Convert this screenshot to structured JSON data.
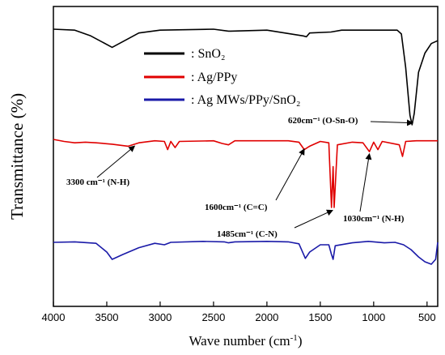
{
  "chart_data": {
    "type": "line",
    "xlabel": "Wave number (cm",
    "xlabel_sup": "-1",
    "xlabel_close": ")",
    "ylabel": "Transmittance (%)",
    "xlim": [
      4000,
      400
    ],
    "x_reversed": true,
    "y_ticks_shown": false,
    "grid": false,
    "legend_position": "top-center",
    "xticks": [
      4000,
      3500,
      3000,
      2500,
      2000,
      1500,
      1000,
      500
    ],
    "xtick_labels": [
      "4000",
      "3500",
      "3000",
      "2500",
      "2000",
      "1500",
      "1000",
      "500"
    ],
    "series": [
      {
        "name": ": SnO₂",
        "color": "#000000",
        "offset": 2.0,
        "points": [
          [
            4000,
            1.0
          ],
          [
            3800,
            0.99
          ],
          [
            3650,
            0.93
          ],
          [
            3450,
            0.81
          ],
          [
            3300,
            0.9
          ],
          [
            3200,
            0.96
          ],
          [
            3000,
            0.99
          ],
          [
            2500,
            1.0
          ],
          [
            2360,
            0.98
          ],
          [
            2340,
            0.98
          ],
          [
            2000,
            0.99
          ],
          [
            1660,
            0.93
          ],
          [
            1630,
            0.92
          ],
          [
            1600,
            0.96
          ],
          [
            1400,
            0.97
          ],
          [
            1300,
            0.99
          ],
          [
            1000,
            0.99
          ],
          [
            780,
            0.99
          ],
          [
            740,
            0.95
          ],
          [
            700,
            0.6
          ],
          [
            660,
            0.1
          ],
          [
            640,
            0.0
          ],
          [
            620,
            0.12
          ],
          [
            580,
            0.55
          ],
          [
            520,
            0.75
          ],
          [
            460,
            0.85
          ],
          [
            400,
            0.88
          ]
        ]
      },
      {
        "name": ": Ag/PPy",
        "color": "#e00000",
        "offset": 1.0,
        "points": [
          [
            4000,
            1.0
          ],
          [
            3900,
            0.97
          ],
          [
            3800,
            0.95
          ],
          [
            3700,
            0.96
          ],
          [
            3600,
            0.95
          ],
          [
            3450,
            0.93
          ],
          [
            3300,
            0.9
          ],
          [
            3200,
            0.95
          ],
          [
            3050,
            0.98
          ],
          [
            2960,
            0.97
          ],
          [
            2930,
            0.85
          ],
          [
            2900,
            0.97
          ],
          [
            2860,
            0.88
          ],
          [
            2820,
            0.97
          ],
          [
            2500,
            0.98
          ],
          [
            2420,
            0.94
          ],
          [
            2360,
            0.92
          ],
          [
            2300,
            0.98
          ],
          [
            1800,
            0.98
          ],
          [
            1700,
            0.96
          ],
          [
            1650,
            0.85
          ],
          [
            1600,
            0.9
          ],
          [
            1500,
            0.97
          ],
          [
            1420,
            0.95
          ],
          [
            1395,
            0.0
          ],
          [
            1380,
            0.6
          ],
          [
            1370,
            0.0
          ],
          [
            1340,
            0.92
          ],
          [
            1200,
            0.96
          ],
          [
            1100,
            0.95
          ],
          [
            1040,
            0.82
          ],
          [
            1000,
            0.96
          ],
          [
            960,
            0.85
          ],
          [
            920,
            0.97
          ],
          [
            760,
            0.92
          ],
          [
            730,
            0.75
          ],
          [
            700,
            0.97
          ],
          [
            600,
            0.98
          ],
          [
            400,
            0.98
          ]
        ]
      },
      {
        "name": ": Ag MWs/PPy/SnO₂",
        "color": "#1a1aa8",
        "offset": 0.0,
        "points": [
          [
            4000,
            0.95
          ],
          [
            3800,
            0.96
          ],
          [
            3600,
            0.93
          ],
          [
            3500,
            0.75
          ],
          [
            3450,
            0.6
          ],
          [
            3350,
            0.7
          ],
          [
            3200,
            0.84
          ],
          [
            3050,
            0.93
          ],
          [
            2960,
            0.9
          ],
          [
            2900,
            0.95
          ],
          [
            2600,
            0.97
          ],
          [
            2400,
            0.96
          ],
          [
            2360,
            0.94
          ],
          [
            2300,
            0.96
          ],
          [
            2000,
            0.97
          ],
          [
            1800,
            0.96
          ],
          [
            1700,
            0.92
          ],
          [
            1640,
            0.62
          ],
          [
            1600,
            0.75
          ],
          [
            1500,
            0.9
          ],
          [
            1420,
            0.9
          ],
          [
            1395,
            0.7
          ],
          [
            1380,
            0.6
          ],
          [
            1360,
            0.88
          ],
          [
            1200,
            0.94
          ],
          [
            1050,
            0.97
          ],
          [
            900,
            0.94
          ],
          [
            800,
            0.95
          ],
          [
            720,
            0.9
          ],
          [
            650,
            0.8
          ],
          [
            580,
            0.65
          ],
          [
            520,
            0.55
          ],
          [
            460,
            0.5
          ],
          [
            420,
            0.6
          ],
          [
            400,
            0.95
          ]
        ]
      }
    ],
    "annotations": [
      {
        "text": "620cm⁻¹ (O-Sn-O)",
        "x": 620,
        "series": 0
      },
      {
        "text": "3300 cm⁻¹ (N-H)",
        "x": 3300,
        "series": 1
      },
      {
        "text": "1600cm⁻¹ (C=C)",
        "x": 1600,
        "series": 1
      },
      {
        "text": "1485cm⁻¹ (C-N)",
        "x": 1385,
        "series": 1
      },
      {
        "text": "1030cm⁻¹ (N-H)",
        "x": 1030,
        "series": 1
      }
    ]
  }
}
